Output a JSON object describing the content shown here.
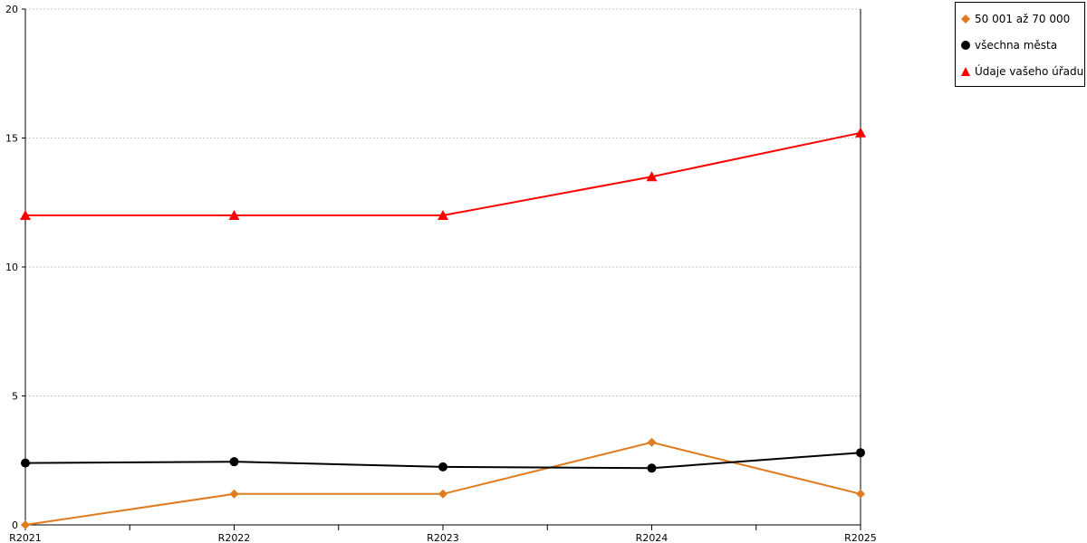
{
  "chart_data": {
    "type": "line",
    "categories": [
      "R2021",
      "R2022",
      "R2023",
      "R2024",
      "R2025"
    ],
    "ylim": [
      0,
      20
    ],
    "yticks": [
      0,
      5,
      10,
      15,
      20
    ],
    "grid": true,
    "legend_position": "top-right",
    "series": [
      {
        "name": "50 001 až 70 000",
        "color": "#e07b1f",
        "marker": "diamond",
        "values": [
          0,
          1.2,
          1.2,
          3.2,
          1.2
        ]
      },
      {
        "name": "všechna města",
        "color": "#000000",
        "marker": "circle",
        "values": [
          2.4,
          2.45,
          2.25,
          2.2,
          2.8
        ]
      },
      {
        "name": "Údaje vašeho úřadu",
        "color": "#ff0000",
        "marker": "triangle",
        "values": [
          12,
          12,
          12,
          13.5,
          15.2
        ]
      }
    ]
  }
}
